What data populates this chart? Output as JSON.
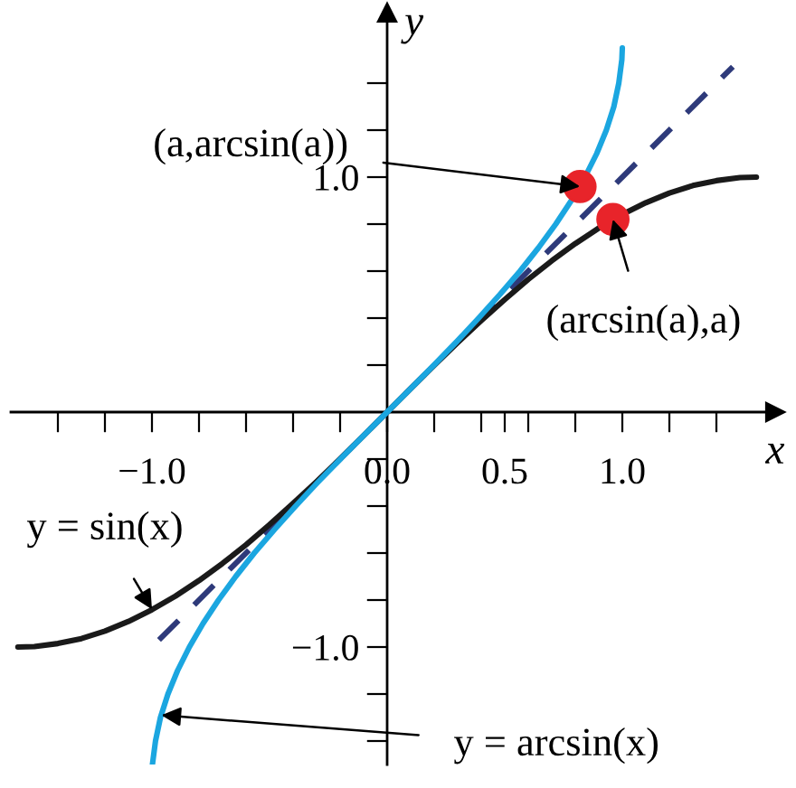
{
  "chart_data": {
    "type": "line",
    "xlabel": "x",
    "ylabel": "y",
    "xlim": [
      -1.6,
      1.65
    ],
    "ylim": [
      -1.5,
      1.7
    ],
    "xticks": [
      {
        "value": -1.4,
        "label": null
      },
      {
        "value": -1.2,
        "label": null
      },
      {
        "value": -1.0,
        "label": "−1.0"
      },
      {
        "value": -0.8,
        "label": null
      },
      {
        "value": -0.6,
        "label": null
      },
      {
        "value": -0.4,
        "label": null
      },
      {
        "value": -0.2,
        "label": null
      },
      {
        "value": 0.0,
        "label": "0.0"
      },
      {
        "value": 0.2,
        "label": null
      },
      {
        "value": 0.4,
        "label": null
      },
      {
        "value": 0.5,
        "label": "0.5"
      },
      {
        "value": 0.6,
        "label": null
      },
      {
        "value": 0.8,
        "label": null
      },
      {
        "value": 1.0,
        "label": "1.0"
      },
      {
        "value": 1.2,
        "label": null
      },
      {
        "value": 1.4,
        "label": null
      }
    ],
    "yticks": [
      {
        "value": -1.4,
        "label": null
      },
      {
        "value": -1.2,
        "label": null
      },
      {
        "value": -1.0,
        "label": "−1.0"
      },
      {
        "value": -0.8,
        "label": null
      },
      {
        "value": -0.6,
        "label": null
      },
      {
        "value": -0.4,
        "label": null
      },
      {
        "value": -0.2,
        "label": null
      },
      {
        "value": 0.2,
        "label": null
      },
      {
        "value": 0.4,
        "label": null
      },
      {
        "value": 0.6,
        "label": null
      },
      {
        "value": 0.8,
        "label": null
      },
      {
        "value": 1.0,
        "label": "1.0"
      },
      {
        "value": 1.2,
        "label": null
      },
      {
        "value": 1.4,
        "label": null
      }
    ],
    "grid": false,
    "series": [
      {
        "color": "#2e3a7a",
        "line_style": "dashed",
        "x": [
          -0.97,
          1.47
        ],
        "values": [
          -0.97,
          1.47
        ]
      },
      {
        "color": "#1a1a1a",
        "line_style": "solid",
        "x": [
          -1.57,
          -1.5,
          -1.4,
          -1.3,
          -1.2,
          -1.1,
          -1.0,
          -0.9,
          -0.8,
          -0.7,
          -0.6,
          -0.5,
          -0.4,
          -0.3,
          -0.2,
          -0.1,
          0.0,
          0.1,
          0.2,
          0.3,
          0.4,
          0.5,
          0.6,
          0.7,
          0.8,
          0.9,
          1.0,
          1.1,
          1.2,
          1.3,
          1.4,
          1.5,
          1.57
        ],
        "values": [
          -1.0,
          -0.998,
          -0.985,
          -0.964,
          -0.932,
          -0.891,
          -0.841,
          -0.783,
          -0.717,
          -0.644,
          -0.565,
          -0.479,
          -0.389,
          -0.296,
          -0.199,
          -0.1,
          0.0,
          0.1,
          0.199,
          0.296,
          0.389,
          0.479,
          0.565,
          0.644,
          0.717,
          0.783,
          0.841,
          0.891,
          0.932,
          0.964,
          0.985,
          0.998,
          1.0
        ]
      },
      {
        "color": "#1ba6e0",
        "line_style": "solid",
        "x": [
          -0.998,
          -0.985,
          -0.964,
          -0.932,
          -0.891,
          -0.841,
          -0.783,
          -0.717,
          -0.644,
          -0.565,
          -0.479,
          -0.389,
          -0.296,
          -0.199,
          -0.1,
          0.0,
          0.1,
          0.199,
          0.296,
          0.389,
          0.479,
          0.565,
          0.644,
          0.717,
          0.783,
          0.841,
          0.891,
          0.932,
          0.964,
          0.985,
          0.998,
          1.0
        ],
        "values": [
          -1.5,
          -1.4,
          -1.3,
          -1.2,
          -1.1,
          -1.0,
          -0.9,
          -0.8,
          -0.7,
          -0.6,
          -0.5,
          -0.4,
          -0.3,
          -0.2,
          -0.1,
          0.0,
          0.1,
          0.2,
          0.3,
          0.4,
          0.5,
          0.6,
          0.7,
          0.8,
          0.9,
          1.0,
          1.1,
          1.2,
          1.3,
          1.4,
          1.5,
          1.55
        ]
      },
      {
        "type": "scatter",
        "color": "#e8242a",
        "marker": "circle",
        "x": [
          0.82,
          0.96
        ],
        "values": [
          0.96,
          0.82
        ]
      }
    ],
    "annotations": [
      {
        "text": "(a,arcsin(a))",
        "x": 0.82,
        "y": 0.96
      },
      {
        "text": "(arcsin(a),a)",
        "x": 0.96,
        "y": 0.82
      },
      {
        "text": "y = sin(x)",
        "x": -1.0,
        "y": -0.84
      },
      {
        "text": "y = arcsin(x)",
        "x": -0.96,
        "y": -1.29
      }
    ]
  }
}
